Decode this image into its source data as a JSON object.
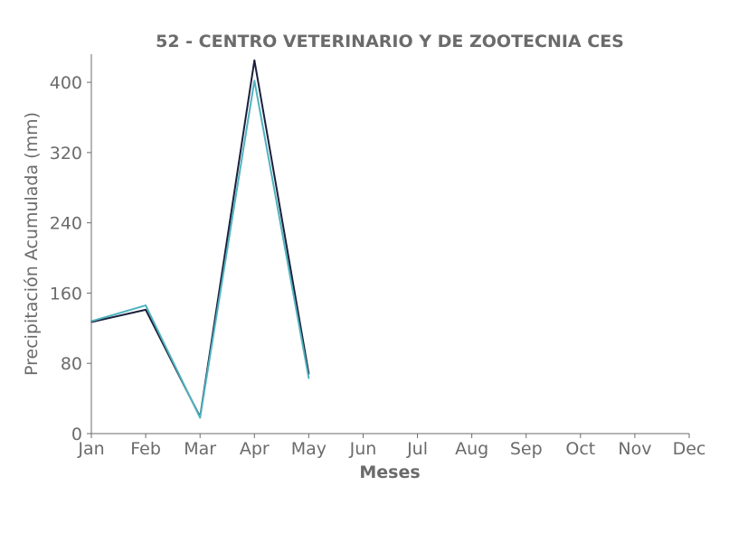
{
  "chart_data": {
    "type": "line",
    "title": "52 - CENTRO VETERINARIO Y DE ZOOTECNIA CES",
    "xlabel": "Meses",
    "ylabel": "Precipitación Acumulada (mm)",
    "categories": [
      "Jan",
      "Feb",
      "Mar",
      "Apr",
      "May",
      "Jun",
      "Jul",
      "Aug",
      "Sep",
      "Oct",
      "Nov",
      "Dec"
    ],
    "ylim": [
      0,
      432
    ],
    "yticks": [
      0,
      80,
      160,
      240,
      320,
      400
    ],
    "grid": false,
    "series": [
      {
        "color": "#1b1f3b",
        "values": [
          127,
          141,
          19,
          425,
          68,
          null,
          null,
          null,
          null,
          null,
          null,
          null
        ]
      },
      {
        "color": "#4fb3bf",
        "values": [
          128,
          146,
          18,
          402,
          63,
          null,
          null,
          null,
          null,
          null,
          null,
          null
        ]
      }
    ]
  }
}
